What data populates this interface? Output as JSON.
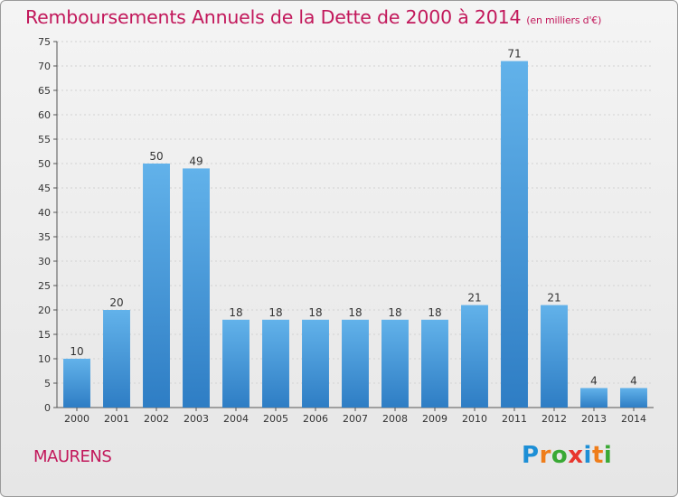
{
  "title": "Remboursements Annuels de la Dette de 2000 à 2014",
  "subtitle": "(en milliers d'€)",
  "commune": "MAURENS",
  "logo": {
    "letters": [
      "P",
      "r",
      "o",
      "x",
      "i",
      "t",
      "i"
    ],
    "colors": [
      "#1d8fd6",
      "#ef7d1a",
      "#3aa935",
      "#e8362d",
      "#1d8fd6",
      "#ef7d1a",
      "#3aa935"
    ]
  },
  "colors": {
    "bar_light": "#62b2ea",
    "bar_dark": "#2e7dc4",
    "title": "#c2185b"
  },
  "chart_data": {
    "type": "bar",
    "title": "Remboursements Annuels de la Dette de 2000 à 2014",
    "xlabel": "",
    "ylabel": "",
    "categories": [
      "2000",
      "2001",
      "2002",
      "2003",
      "2004",
      "2005",
      "2006",
      "2007",
      "2008",
      "2009",
      "2010",
      "2011",
      "2012",
      "2013",
      "2014"
    ],
    "values": [
      10,
      20,
      50,
      49,
      18,
      18,
      18,
      18,
      18,
      18,
      21,
      71,
      21,
      4,
      4
    ],
    "ylim": [
      0,
      75
    ],
    "yticks": [
      0,
      5,
      10,
      15,
      20,
      25,
      30,
      35,
      40,
      45,
      50,
      55,
      60,
      65,
      70,
      75
    ],
    "grid": true,
    "data_labels": true
  }
}
